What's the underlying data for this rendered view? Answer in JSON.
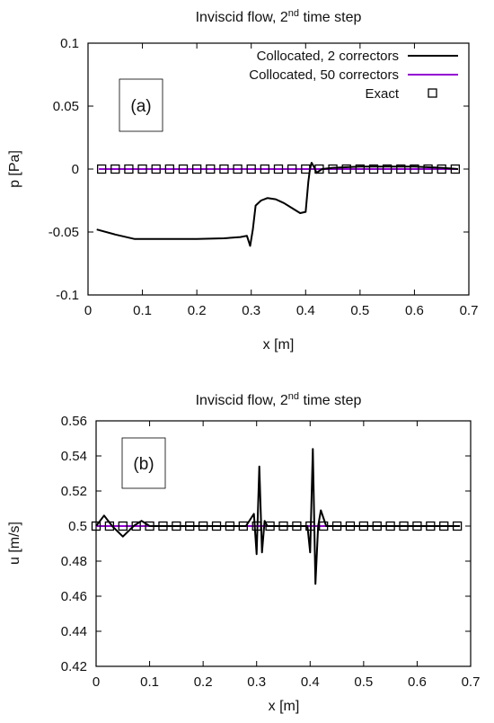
{
  "chart_data": [
    {
      "type": "line",
      "title": "Inviscid flow, 2",
      "title_sup": "nd",
      "title_tail": " time step",
      "panel_label": "(a)",
      "xlabel": "x [m]",
      "ylabel": "p [Pa]",
      "xlim": [
        0,
        0.7
      ],
      "ylim": [
        -0.1,
        0.1
      ],
      "xticks": [
        "0",
        "0.1",
        "0.2",
        "0.3",
        "0.4",
        "0.5",
        "0.6",
        "0.7"
      ],
      "yticks": [
        "-0.1",
        "-0.05",
        "0",
        "0.05",
        "0.1"
      ],
      "grid": false,
      "legend": "top-right",
      "series": [
        {
          "name": "Collocated, 2 correctors",
          "color": "#000000",
          "style": "line",
          "x": [
            0.016,
            0.05,
            0.085,
            0.15,
            0.2,
            0.25,
            0.28,
            0.292,
            0.298,
            0.303,
            0.308,
            0.318,
            0.33,
            0.345,
            0.36,
            0.375,
            0.39,
            0.4,
            0.405,
            0.408,
            0.411,
            0.415,
            0.42,
            0.43,
            0.45,
            0.5,
            0.55,
            0.6,
            0.65,
            0.68
          ],
          "y": [
            -0.048,
            -0.052,
            -0.0555,
            -0.0555,
            -0.0555,
            -0.055,
            -0.054,
            -0.053,
            -0.061,
            -0.048,
            -0.029,
            -0.025,
            -0.023,
            -0.024,
            -0.027,
            -0.031,
            -0.035,
            -0.034,
            -0.01,
            0.0,
            0.005,
            0.002,
            -0.003,
            0.0,
            0.001,
            0.002,
            0.002,
            0.002,
            0.001,
            0.0
          ]
        },
        {
          "name": "Collocated, 50 correctors",
          "color": "#9400d3",
          "style": "line",
          "x": [
            0.02,
            0.68
          ],
          "y": [
            0.0,
            0.0
          ]
        },
        {
          "name": "Exact",
          "color": "#000000",
          "style": "markers",
          "x": [
            0.025,
            0.05,
            0.075,
            0.1,
            0.125,
            0.15,
            0.175,
            0.2,
            0.225,
            0.25,
            0.275,
            0.3,
            0.325,
            0.35,
            0.375,
            0.4,
            0.425,
            0.45,
            0.475,
            0.5,
            0.525,
            0.55,
            0.575,
            0.6,
            0.625,
            0.65,
            0.675
          ],
          "y": [
            0,
            0,
            0,
            0,
            0,
            0,
            0,
            0,
            0,
            0,
            0,
            0,
            0,
            0,
            0,
            0,
            0,
            0,
            0,
            0,
            0,
            0,
            0,
            0,
            0,
            0,
            0
          ]
        }
      ]
    },
    {
      "type": "line",
      "title": "Inviscid flow, 2",
      "title_sup": "nd",
      "title_tail": " time step",
      "panel_label": "(b)",
      "xlabel": "x [m]",
      "ylabel": "u [m/s]",
      "xlim": [
        0,
        0.7
      ],
      "ylim": [
        0.42,
        0.56
      ],
      "xticks": [
        "0",
        "0.1",
        "0.2",
        "0.3",
        "0.4",
        "0.5",
        "0.6",
        "0.7"
      ],
      "yticks": [
        "0.42",
        "0.44",
        "0.46",
        "0.48",
        "0.5",
        "0.52",
        "0.54",
        "0.56"
      ],
      "grid": false,
      "series": [
        {
          "name": "Collocated, 2 correctors",
          "color": "#000000",
          "style": "line",
          "x": [
            0.0,
            0.015,
            0.03,
            0.05,
            0.07,
            0.085,
            0.1,
            0.12,
            0.2,
            0.28,
            0.295,
            0.3,
            0.305,
            0.31,
            0.315,
            0.32,
            0.33,
            0.38,
            0.395,
            0.4,
            0.405,
            0.41,
            0.415,
            0.42,
            0.43,
            0.45,
            0.55,
            0.68
          ],
          "y": [
            0.5,
            0.506,
            0.5,
            0.494,
            0.5,
            0.503,
            0.5,
            0.5,
            0.5,
            0.5,
            0.507,
            0.484,
            0.534,
            0.485,
            0.503,
            0.5,
            0.5,
            0.5,
            0.5,
            0.485,
            0.544,
            0.467,
            0.5,
            0.509,
            0.5,
            0.5,
            0.5,
            0.5
          ]
        },
        {
          "name": "Collocated, 50 correctors",
          "color": "#9400d3",
          "style": "line",
          "x": [
            0.0,
            0.68
          ],
          "y": [
            0.5,
            0.5
          ]
        },
        {
          "name": "Exact",
          "color": "#000000",
          "style": "markers",
          "x": [
            0.0,
            0.025,
            0.05,
            0.075,
            0.1,
            0.125,
            0.15,
            0.175,
            0.2,
            0.225,
            0.25,
            0.275,
            0.3,
            0.325,
            0.35,
            0.375,
            0.4,
            0.425,
            0.45,
            0.475,
            0.5,
            0.525,
            0.55,
            0.575,
            0.6,
            0.625,
            0.65,
            0.675
          ],
          "y": [
            0.5,
            0.5,
            0.5,
            0.5,
            0.5,
            0.5,
            0.5,
            0.5,
            0.5,
            0.5,
            0.5,
            0.5,
            0.5,
            0.5,
            0.5,
            0.5,
            0.5,
            0.5,
            0.5,
            0.5,
            0.5,
            0.5,
            0.5,
            0.5,
            0.5,
            0.5,
            0.5,
            0.5
          ]
        }
      ]
    }
  ]
}
